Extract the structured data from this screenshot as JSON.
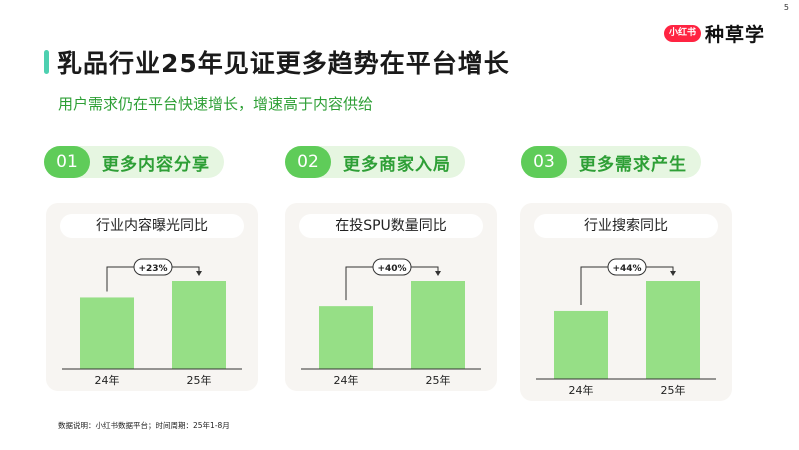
{
  "page_number": "5",
  "brand": {
    "badge": "小红书",
    "name": "种草学"
  },
  "title": "乳品行业25年见证更多趋势在平台增长",
  "subtitle": "用户需求仍在平台快速增长，增速高于内容供给",
  "sections": [
    {
      "number": "01",
      "label": "更多内容分享"
    },
    {
      "number": "02",
      "label": "更多商家入局"
    },
    {
      "number": "03",
      "label": "更多需求产生"
    }
  ],
  "footnote": "数据说明：小红书数据平台；时间周期：25年1-8月",
  "colors": {
    "bar": "#96df86",
    "pill_dark": "#5fcc59",
    "pill_light": "#e6f6e1",
    "accent_text": "#2e9f36"
  },
  "chart_data": [
    {
      "type": "bar",
      "title": "行业内容曝光同比",
      "categories": [
        "24年",
        "25年"
      ],
      "values": [
        100,
        123
      ],
      "annotation": "+23%"
    },
    {
      "type": "bar",
      "title": "在投SPU数量同比",
      "categories": [
        "24年",
        "25年"
      ],
      "values": [
        100,
        140
      ],
      "annotation": "+40%"
    },
    {
      "type": "bar",
      "title": "行业搜索同比",
      "categories": [
        "24年",
        "25年"
      ],
      "values": [
        100,
        144
      ],
      "annotation": "+44%"
    }
  ]
}
